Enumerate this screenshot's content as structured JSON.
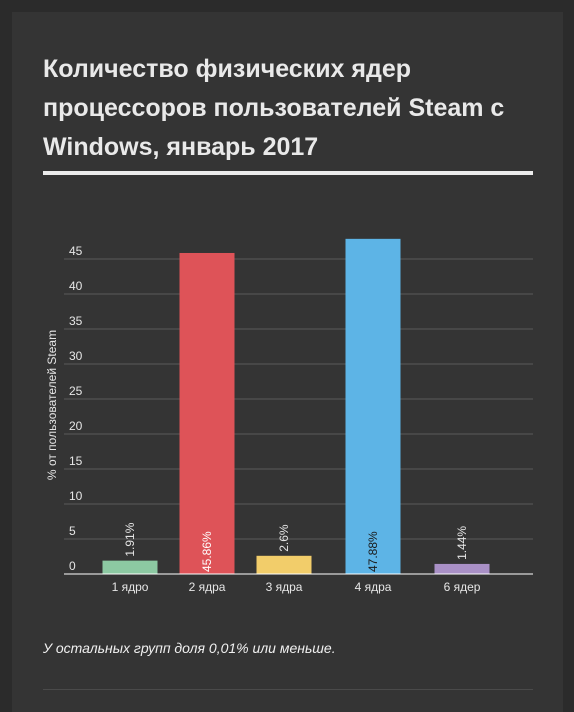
{
  "title": "Количество физических ядер процессоров пользователей Steam с Windows, январь 2017",
  "footnote": "У остальных групп доля 0,01% или меньше.",
  "chart_data": {
    "type": "bar",
    "ylabel": "% от пользователей Steam",
    "xlabel": "",
    "ylim": [
      0,
      50
    ],
    "yticks": [
      0,
      5,
      10,
      15,
      20,
      25,
      30,
      35,
      40,
      45
    ],
    "grid": true,
    "categories": [
      "1 ядро",
      "2 ядра",
      "3 ядра",
      "4 ядра",
      "6 ядер"
    ],
    "values": [
      1.91,
      45.86,
      2.6,
      47.88,
      1.44
    ],
    "value_labels": [
      "1.91%",
      "45.86%",
      "2.6%",
      "47.88%",
      "1.44%"
    ],
    "colors": [
      "#8cc9a2",
      "#de5358",
      "#f2cd6a",
      "#5db4e6",
      "#a990c6"
    ]
  },
  "colors": {
    "background": "#343434",
    "text": "#e9e9e9",
    "grid": "#5a5a5a"
  }
}
